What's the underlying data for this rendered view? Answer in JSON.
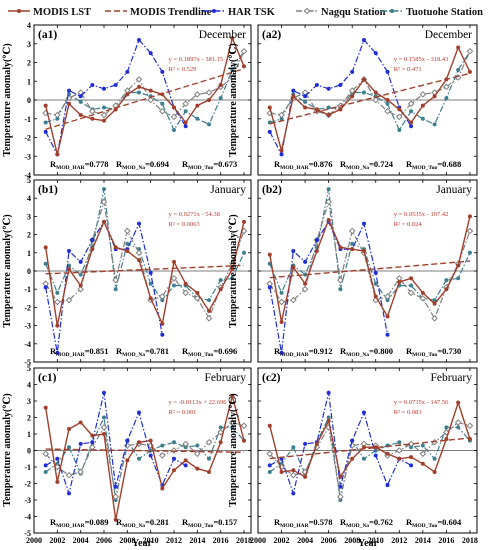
{
  "legend": [
    {
      "name": "MODIS LST",
      "color": "#a0402c",
      "style": "solid",
      "marker": "circle"
    },
    {
      "name": "MODIS Trendline",
      "color": "#a0402c",
      "style": "dash",
      "marker": ""
    },
    {
      "name": "HAR TSK",
      "color": "#1f2fd4",
      "style": "dashdot",
      "marker": "circle"
    },
    {
      "name": "Nagqu Station",
      "color": "#808080",
      "style": "dashdot",
      "marker": "diamond"
    },
    {
      "name": "Tuotuohe Station",
      "color": "#3f7f8f",
      "style": "dashdot",
      "marker": "circle"
    }
  ],
  "ylabel": "Temperature anomaly(℃)",
  "xlabel": "Year",
  "chart_data": [
    {
      "type": "line",
      "id": "a1",
      "label": "(a1)",
      "month": "December",
      "x": [
        2001,
        2002,
        2003,
        2004,
        2005,
        2006,
        2007,
        2008,
        2009,
        2010,
        2011,
        2012,
        2013,
        2014,
        2015,
        2016,
        2017,
        2018
      ],
      "xticks": [
        2000,
        2002,
        2004,
        2006,
        2008,
        2010,
        2012,
        2014,
        2016,
        2018
      ],
      "ylim": [
        -4,
        4
      ],
      "yticks": [
        -4,
        -3,
        -2,
        -1,
        0,
        1,
        2,
        3,
        4
      ],
      "series": [
        {
          "name": "MODIS LST",
          "values": [
            -0.3,
            -2.9,
            -0.2,
            -0.8,
            -1.0,
            -1.1,
            -0.5,
            0.3,
            0.7,
            0.5,
            0.3,
            -0.4,
            -1.2,
            -0.3,
            0.0,
            0.8,
            3.3,
            1.8
          ]
        },
        {
          "name": "HAR TSK",
          "values": [
            -1.7,
            -2.9,
            0.5,
            0.2,
            0.8,
            0.6,
            0.8,
            1.5,
            3.2,
            2.5,
            1.5,
            -0.4,
            -1.4,
            null,
            null,
            null,
            null,
            null
          ]
        },
        {
          "name": "Nagqu Station",
          "values": [
            -0.7,
            -0.8,
            0.1,
            0.4,
            -0.6,
            -0.8,
            -0.3,
            0.5,
            1.1,
            0.0,
            -0.6,
            -0.9,
            -0.2,
            0.3,
            0.4,
            0.7,
            1.2,
            2.6
          ]
        },
        {
          "name": "Tuotuohe Station",
          "values": [
            -1.2,
            -1.0,
            0.3,
            -0.1,
            -0.5,
            -0.4,
            -0.5,
            0.4,
            0.4,
            0.2,
            -0.2,
            -1.6,
            -0.6,
            -1.0,
            -1.3,
            0.1,
            1.6,
            2.6
          ]
        }
      ],
      "trend": {
        "slope": 0.1897,
        "intercept": -381.15
      },
      "equation": "y = 0.1897x - 381.15",
      "r2": "R² = 0.529",
      "r_values": [
        {
          "name": "MOD_HAR",
          "value": "=0.778"
        },
        {
          "name": "MOD_Na",
          "value": "=0.694"
        },
        {
          "name": "MOD_Tuo",
          "value": "=0.673"
        }
      ]
    },
    {
      "type": "line",
      "id": "a2",
      "label": "(a2)",
      "month": "December",
      "x": [
        2001,
        2002,
        2003,
        2004,
        2005,
        2006,
        2007,
        2008,
        2009,
        2010,
        2011,
        2012,
        2013,
        2014,
        2015,
        2016,
        2017,
        2018
      ],
      "xticks": [
        2000,
        2002,
        2004,
        2006,
        2008,
        2010,
        2012,
        2014,
        2016,
        2018
      ],
      "ylim": [
        -4,
        4
      ],
      "yticks": [
        -4,
        -3,
        -2,
        -1,
        0,
        1,
        2,
        3,
        4
      ],
      "series": [
        {
          "name": "MODIS LST",
          "values": [
            -0.4,
            -2.7,
            0.2,
            -0.4,
            -0.5,
            -0.8,
            -0.5,
            0.2,
            1.1,
            0.4,
            0.0,
            -0.5,
            -1.2,
            -0.3,
            0.2,
            1.1,
            2.8,
            1.5
          ]
        },
        {
          "name": "HAR TSK",
          "values": [
            -1.7,
            -2.9,
            0.5,
            0.2,
            0.8,
            0.6,
            0.8,
            1.5,
            3.2,
            2.5,
            1.5,
            -0.4,
            -1.4,
            null,
            null,
            null,
            null,
            null
          ]
        },
        {
          "name": "Nagqu Station",
          "values": [
            -0.7,
            -0.8,
            0.1,
            0.4,
            -0.6,
            -0.8,
            -0.3,
            0.5,
            1.1,
            0.0,
            -0.6,
            -0.9,
            -0.2,
            0.3,
            0.4,
            0.7,
            1.2,
            2.6
          ]
        },
        {
          "name": "Tuotuohe Station",
          "values": [
            -1.2,
            -1.0,
            0.3,
            -0.1,
            -0.5,
            -0.4,
            -0.5,
            0.4,
            0.4,
            0.2,
            -0.2,
            -1.6,
            -0.6,
            -1.0,
            -1.3,
            0.1,
            1.6,
            2.6
          ]
        }
      ],
      "trend": {
        "slope": 0.1585,
        "intercept": -318.43
      },
      "equation": "y = 0.1585x - 318.43",
      "r2": "R² = 0.471",
      "r_values": [
        {
          "name": "MOD_HAR",
          "value": "=0.876"
        },
        {
          "name": "MOD_Na",
          "value": "=0.724"
        },
        {
          "name": "MOD_Tuo",
          "value": "=0.688"
        }
      ]
    },
    {
      "type": "line",
      "id": "b1",
      "label": "(b1)",
      "month": "January",
      "x": [
        2001,
        2002,
        2003,
        2004,
        2005,
        2006,
        2007,
        2008,
        2009,
        2010,
        2011,
        2012,
        2013,
        2014,
        2015,
        2016,
        2017,
        2018
      ],
      "xticks": [
        2000,
        2002,
        2004,
        2006,
        2008,
        2010,
        2012,
        2014,
        2016,
        2018
      ],
      "ylim": [
        -5,
        5
      ],
      "yticks": [
        -5,
        -4,
        -3,
        -2,
        -1,
        0,
        1,
        2,
        3,
        4,
        5
      ],
      "series": [
        {
          "name": "MODIS LST",
          "values": [
            1.3,
            -3.0,
            0.1,
            -0.8,
            1.2,
            2.7,
            1.3,
            1.1,
            0.6,
            -1.5,
            -2.9,
            0.5,
            -0.7,
            -1.2,
            -2.2,
            -1.0,
            0.1,
            2.7
          ]
        },
        {
          "name": "HAR TSK",
          "values": [
            -0.9,
            -4.5,
            1.1,
            0.5,
            1.7,
            2.7,
            1.2,
            1.2,
            2.6,
            -0.1,
            -3.5,
            null,
            null,
            null,
            null,
            null,
            null,
            null
          ]
        },
        {
          "name": "Nagqu Station",
          "values": [
            -0.7,
            -1.7,
            -1.6,
            -1.0,
            1.7,
            3.8,
            -0.5,
            2.2,
            1.0,
            -1.6,
            -1.4,
            -0.4,
            -1.2,
            -1.5,
            -2.6,
            -0.9,
            0.4,
            2.2
          ]
        },
        {
          "name": "Tuotuohe Station",
          "values": [
            0.4,
            -1.2,
            0.3,
            -0.2,
            1.3,
            4.5,
            -1.0,
            1.5,
            1.2,
            -0.7,
            -1.6,
            -0.8,
            -0.8,
            -1.5,
            -1.6,
            -0.5,
            -0.4,
            1.0
          ]
        }
      ],
      "trend": {
        "slope": 0.0271,
        "intercept": -54.38
      },
      "equation": "y = 0.0271x - 54.38",
      "r2": "R² = 0.0063",
      "r_values": [
        {
          "name": "MOD_HAR",
          "value": "=0.851"
        },
        {
          "name": "MOD_Na",
          "value": "=0.781"
        },
        {
          "name": "MOD_Tuo",
          "value": "=0.696"
        }
      ]
    },
    {
      "type": "line",
      "id": "b2",
      "label": "(b2)",
      "month": "January",
      "x": [
        2001,
        2002,
        2003,
        2004,
        2005,
        2006,
        2007,
        2008,
        2009,
        2010,
        2011,
        2012,
        2013,
        2014,
        2015,
        2016,
        2017,
        2018
      ],
      "xticks": [
        2000,
        2002,
        2004,
        2006,
        2008,
        2010,
        2012,
        2014,
        2016,
        2018
      ],
      "ylim": [
        -5,
        5
      ],
      "yticks": [
        -5,
        -4,
        -3,
        -2,
        -1,
        0,
        1,
        2,
        3,
        4,
        5
      ],
      "series": [
        {
          "name": "MODIS LST",
          "values": [
            0.9,
            -2.8,
            0.2,
            -0.7,
            1.1,
            2.8,
            1.3,
            1.2,
            1.1,
            -1.4,
            -2.5,
            -0.6,
            -0.4,
            -1.2,
            -1.8,
            -1.0,
            0.3,
            3.0
          ]
        },
        {
          "name": "HAR TSK",
          "values": [
            -0.9,
            -4.5,
            1.1,
            0.5,
            1.7,
            2.7,
            1.2,
            1.2,
            2.6,
            -0.1,
            -3.5,
            null,
            null,
            null,
            null,
            null,
            null,
            null
          ]
        },
        {
          "name": "Nagqu Station",
          "values": [
            -0.7,
            -1.7,
            -1.6,
            -1.0,
            1.7,
            3.8,
            -0.5,
            2.2,
            1.0,
            -1.6,
            -1.4,
            -0.4,
            -1.2,
            -1.5,
            -2.6,
            -0.9,
            0.4,
            2.2
          ]
        },
        {
          "name": "Tuotuohe Station",
          "values": [
            0.4,
            -1.2,
            0.3,
            -0.2,
            1.3,
            4.5,
            -1.0,
            1.5,
            1.2,
            -0.7,
            -1.6,
            -0.8,
            -0.8,
            -1.5,
            -1.6,
            -0.5,
            -0.4,
            1.0
          ]
        }
      ],
      "trend": {
        "slope": 0.0535,
        "intercept": -107.42
      },
      "equation": "y = 0.0535x - 107.42",
      "r2": "R² = 0.024",
      "r_values": [
        {
          "name": "MOD_HAR",
          "value": "=0.912"
        },
        {
          "name": "MOD_Na",
          "value": "=0.800"
        },
        {
          "name": "MOD_Tuo",
          "value": "=0.730"
        }
      ]
    },
    {
      "type": "line",
      "id": "c1",
      "label": "(c1)",
      "month": "February",
      "x": [
        2001,
        2002,
        2003,
        2004,
        2005,
        2006,
        2007,
        2008,
        2009,
        2010,
        2011,
        2012,
        2013,
        2014,
        2015,
        2016,
        2017,
        2018
      ],
      "xticks": [
        2000,
        2002,
        2004,
        2006,
        2008,
        2010,
        2012,
        2014,
        2016,
        2018
      ],
      "ylim": [
        -5,
        5
      ],
      "yticks": [
        -5,
        -4,
        -3,
        -2,
        -1,
        0,
        1,
        2,
        3,
        4,
        5
      ],
      "series": [
        {
          "name": "MODIS LST",
          "values": [
            2.6,
            -1.9,
            1.3,
            1.7,
            0.9,
            1.0,
            -4.2,
            -0.6,
            0.5,
            0.6,
            -2.3,
            -1.2,
            -0.6,
            -1.1,
            -1.3,
            0.5,
            3.3,
            0.6
          ]
        },
        {
          "name": "HAR TSK",
          "values": [
            -0.9,
            -0.5,
            -2.6,
            0.4,
            0.5,
            3.5,
            -2.2,
            0.6,
            2.3,
            -0.3,
            -2.1,
            -0.5,
            -0.9,
            null,
            null,
            null,
            null,
            null
          ]
        },
        {
          "name": "Nagqu Station",
          "values": [
            -0.2,
            -1.0,
            -1.5,
            -1.3,
            0.2,
            1.4,
            -2.8,
            0.3,
            0.4,
            0.3,
            -0.3,
            0.0,
            0.4,
            -0.2,
            0.5,
            1.1,
            1.7,
            1.5
          ]
        },
        {
          "name": "Tuotuohe Station",
          "values": [
            -1.3,
            -0.8,
            0.2,
            -1.4,
            0.5,
            2.0,
            -3.0,
            0.6,
            -0.5,
            0.0,
            0.3,
            0.5,
            0.2,
            0.3,
            -0.5,
            1.4,
            1.4,
            0.6
          ]
        }
      ],
      "trend": {
        "slope": -0.0113,
        "intercept": 22.696
      },
      "equation": "y = -0.0113x + 22.696",
      "r2": "R² = 0.001",
      "r_values": [
        {
          "name": "MOD_HAR",
          "value": "=0.089"
        },
        {
          "name": "MOD_Na",
          "value": "=0.281"
        },
        {
          "name": "MOD_Tuo",
          "value": "=0.157"
        }
      ]
    },
    {
      "type": "line",
      "id": "c2",
      "label": "(c2)",
      "month": "February",
      "x": [
        2001,
        2002,
        2003,
        2004,
        2005,
        2006,
        2007,
        2008,
        2009,
        2010,
        2011,
        2012,
        2013,
        2014,
        2015,
        2016,
        2017,
        2018
      ],
      "xticks": [
        2000,
        2002,
        2004,
        2006,
        2008,
        2010,
        2012,
        2014,
        2016,
        2018
      ],
      "ylim": [
        -5,
        5
      ],
      "yticks": [
        -5,
        -4,
        -3,
        -2,
        -1,
        0,
        1,
        2,
        3,
        4,
        5
      ],
      "series": [
        {
          "name": "MODIS LST",
          "values": [
            1.5,
            -1.3,
            -1.2,
            -1.6,
            0.4,
            1.8,
            -1.6,
            -0.5,
            0.2,
            0.2,
            -0.2,
            -0.5,
            -0.4,
            -0.8,
            -1.3,
            0.7,
            2.9,
            0.7
          ]
        },
        {
          "name": "HAR TSK",
          "values": [
            -0.9,
            -0.5,
            -2.6,
            0.4,
            0.5,
            3.5,
            -2.2,
            0.6,
            2.3,
            -0.3,
            -2.1,
            -0.5,
            -0.9,
            null,
            null,
            null,
            null,
            null
          ]
        },
        {
          "name": "Nagqu Station",
          "values": [
            -0.2,
            -1.0,
            -1.5,
            -1.3,
            0.2,
            1.4,
            -2.8,
            0.3,
            0.4,
            0.3,
            -0.3,
            0.0,
            0.4,
            -0.2,
            0.5,
            1.1,
            1.7,
            1.5
          ]
        },
        {
          "name": "Tuotuohe Station",
          "values": [
            -1.3,
            -0.8,
            0.2,
            -1.4,
            0.5,
            2.0,
            -3.0,
            0.6,
            -0.5,
            0.0,
            0.3,
            0.5,
            0.2,
            0.3,
            -0.5,
            1.4,
            1.4,
            0.6
          ]
        }
      ],
      "trend": {
        "slope": 0.0735,
        "intercept": -147.56
      },
      "equation": "y = 0.0735x - 147.56",
      "r2": "R² = 0.083",
      "r_values": [
        {
          "name": "MOD_HAR",
          "value": "=0.578"
        },
        {
          "name": "MOD_Na",
          "value": "=0.762"
        },
        {
          "name": "MOD_Tuo",
          "value": "=0.604"
        }
      ]
    }
  ]
}
